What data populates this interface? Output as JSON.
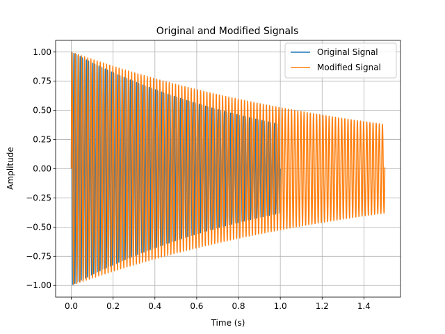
{
  "chart_data": {
    "type": "line",
    "title": "Original and Modified Signals",
    "xlabel": "Time (s)",
    "ylabel": "Amplitude",
    "xlim": [
      -0.075,
      1.575
    ],
    "ylim": [
      -1.1,
      1.1
    ],
    "xticks": [
      0.0,
      0.2,
      0.4,
      0.6,
      0.8,
      1.0,
      1.2,
      1.4
    ],
    "xtick_labels": [
      "0.0",
      "0.2",
      "0.4",
      "0.6",
      "0.8",
      "1.0",
      "1.2",
      "1.4"
    ],
    "yticks": [
      -1.0,
      -0.75,
      -0.5,
      -0.25,
      0.0,
      0.25,
      0.5,
      0.75,
      1.0
    ],
    "ytick_labels": [
      "−1.00",
      "−0.75",
      "−0.50",
      "−0.25",
      "0.00",
      "0.25",
      "0.50",
      "0.75",
      "1.00"
    ],
    "grid": true,
    "legend_position": "top-right",
    "series": [
      {
        "name": "Original Signal",
        "color": "#1f77b4",
        "signal": "damped sine",
        "t_start": 0.0,
        "t_end": 1.0,
        "frequency_hz": 100,
        "amplitude": 1.0,
        "decay_rate": 0.97
      },
      {
        "name": "Modified Signal",
        "color": "#ff7f0e",
        "signal": "damped sine",
        "t_start": 0.0,
        "t_end": 1.5,
        "frequency_hz": 66.67,
        "amplitude": 1.0,
        "decay_rate": 0.647
      }
    ]
  }
}
